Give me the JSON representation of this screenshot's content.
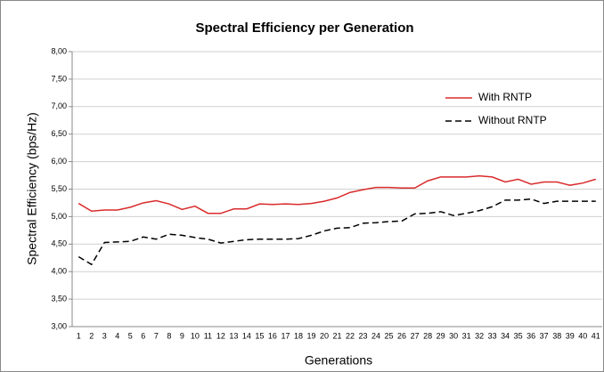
{
  "chart_data": {
    "type": "line",
    "title": "Spectral Efficiency per Generation",
    "x_label": "Generations",
    "y_label": "Spectral Efficiency (bps/Hz)",
    "categories": [
      "1",
      "2",
      "3",
      "4",
      "5",
      "6",
      "7",
      "8",
      "9",
      "10",
      "11",
      "12",
      "13",
      "14",
      "15",
      "16",
      "17",
      "18",
      "19",
      "20",
      "21",
      "22",
      "23",
      "24",
      "25",
      "26",
      "27",
      "28",
      "29",
      "30",
      "31",
      "32",
      "33",
      "34",
      "35",
      "36",
      "37",
      "38",
      "39",
      "40",
      "41"
    ],
    "series": [
      {
        "name": "With RNTP",
        "color": "#d92b2b",
        "dash": "solid",
        "values": [
          5.24,
          5.1,
          5.12,
          5.12,
          5.17,
          5.25,
          5.29,
          5.23,
          5.13,
          5.19,
          5.06,
          5.06,
          5.14,
          5.14,
          5.23,
          5.22,
          5.23,
          5.22,
          5.24,
          5.28,
          5.34,
          5.44,
          5.49,
          5.53,
          5.53,
          5.52,
          5.52,
          5.65,
          5.72,
          5.72,
          5.72,
          5.74,
          5.72,
          5.63,
          5.68,
          5.59,
          5.63,
          5.63,
          5.57,
          5.61,
          5.68
        ]
      },
      {
        "name": "Without RNTP",
        "color": "#000000",
        "dash": "dashed",
        "values": [
          4.27,
          4.13,
          4.53,
          4.54,
          4.55,
          4.63,
          4.59,
          4.68,
          4.66,
          4.62,
          4.59,
          4.52,
          4.55,
          4.58,
          4.59,
          4.59,
          4.59,
          4.6,
          4.66,
          4.74,
          4.79,
          4.8,
          4.88,
          4.89,
          4.91,
          4.92,
          5.05,
          5.06,
          5.09,
          5.02,
          5.06,
          5.11,
          5.18,
          5.3,
          5.3,
          5.32,
          5.24,
          5.28,
          5.28,
          5.28,
          5.28
        ]
      }
    ],
    "ylim": [
      3,
      8
    ],
    "yticks": [
      {
        "value": 3,
        "label": "3,00"
      },
      {
        "value": 3.5,
        "label": "3,50"
      },
      {
        "value": 4,
        "label": "4,00"
      },
      {
        "value": 4.5,
        "label": "4,50"
      },
      {
        "value": 5,
        "label": "5,00"
      },
      {
        "value": 5.5,
        "label": "5,50"
      },
      {
        "value": 6,
        "label": "6,00"
      },
      {
        "value": 6.5,
        "label": "6,50"
      },
      {
        "value": 7,
        "label": "7,00"
      },
      {
        "value": 7.5,
        "label": "7,50"
      },
      {
        "value": 8,
        "label": "8,00"
      }
    ],
    "grid": true
  }
}
